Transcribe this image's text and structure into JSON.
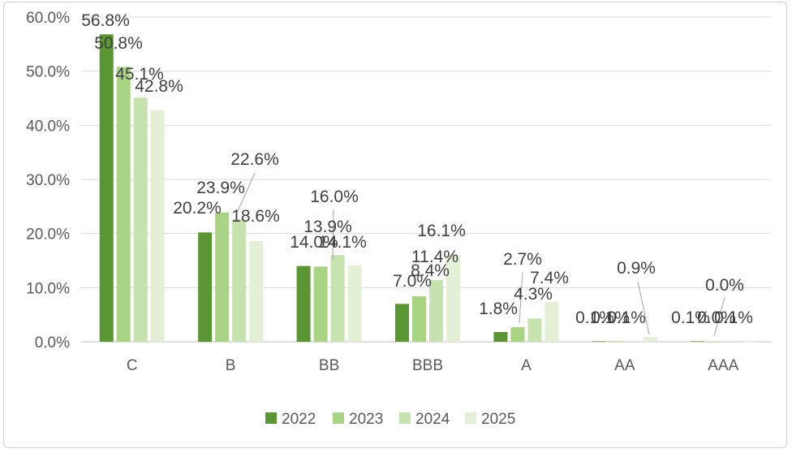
{
  "chart_data": {
    "type": "bar",
    "title": "",
    "xlabel": "",
    "ylabel": "",
    "categories": [
      "C",
      "B",
      "BB",
      "BBB",
      "A",
      "AA",
      "AAA"
    ],
    "series": [
      {
        "name": "2022",
        "color": "#5a9632",
        "values": [
          56.8,
          20.2,
          14.0,
          7.0,
          1.8,
          0.1,
          0.1
        ]
      },
      {
        "name": "2023",
        "color": "#a8d484",
        "values": [
          50.8,
          23.9,
          13.9,
          8.4,
          2.7,
          0.1,
          0.0
        ]
      },
      {
        "name": "2024",
        "color": "#c6e2af",
        "values": [
          45.1,
          22.6,
          16.0,
          11.4,
          4.3,
          0.1,
          0.1
        ]
      },
      {
        "name": "2025",
        "color": "#e3f0d6",
        "values": [
          42.8,
          18.6,
          14.1,
          16.1,
          7.4,
          0.9,
          0.0
        ]
      }
    ],
    "labels": [
      [
        "56.8%",
        "20.2%",
        "14.0%",
        "7.0%",
        "1.8%",
        "0.1%",
        "0.1%"
      ],
      [
        "50.8%",
        "23.9%",
        "13.9%",
        "8.4%",
        "2.7%",
        "0.1%",
        "0.0%"
      ],
      [
        "45.1%",
        "22.6%",
        "16.0%",
        "11.4%",
        "4.3%",
        "0.1%",
        "0.1%"
      ],
      [
        "42.8%",
        "18.6%",
        "14.1%",
        "16.1%",
        "7.4%",
        "0.9%",
        "0.0%"
      ]
    ],
    "ylim": [
      0,
      60
    ],
    "yticks": [
      "0.0%",
      "10.0%",
      "20.0%",
      "30.0%",
      "40.0%",
      "50.0%",
      "60.0%"
    ],
    "grid": true,
    "legend_position": "bottom"
  }
}
